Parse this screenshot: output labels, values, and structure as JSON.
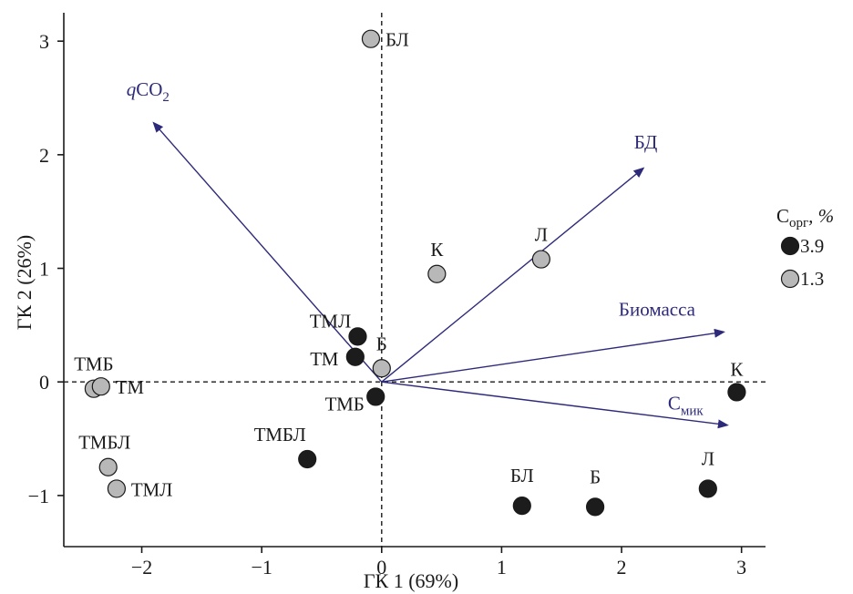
{
  "chart_data": {
    "type": "scatter",
    "title": "",
    "xlabel": "ГК 1 (69%)",
    "ylabel": "ГК 2 (26%)",
    "xlim": [
      -2.65,
      3.2
    ],
    "ylim": [
      -1.45,
      3.25
    ],
    "x_ticks": [
      -2,
      -1,
      0,
      1,
      2,
      3
    ],
    "y_ticks": [
      -1,
      0,
      1,
      2,
      3
    ],
    "x_tick_labels": [
      "−2",
      "−1",
      "0",
      "1",
      "2",
      "3"
    ],
    "y_tick_labels": [
      "−1",
      "0",
      "1",
      "2",
      "3"
    ],
    "reference_lines": {
      "x": 0,
      "y": 0,
      "style": "dashed"
    },
    "legend": {
      "title_main": "С",
      "title_sub": "орг",
      "title_suffix": ", %",
      "placement": "right",
      "entries": [
        {
          "label": "3.9",
          "color": "#1c1c1c"
        },
        {
          "label": "1.3",
          "color": "#b8b8b8"
        }
      ]
    },
    "colors": {
      "dark": "#1c1c1c",
      "light": "#b8b8b8",
      "vector": "#2e2a7a"
    },
    "series": [
      {
        "name": "3.9",
        "color": "#1c1c1c",
        "points": [
          {
            "x": -0.2,
            "y": 0.4,
            "label": "ТМЛ"
          },
          {
            "x": -0.22,
            "y": 0.22,
            "label": "ТМ"
          },
          {
            "x": -0.05,
            "y": -0.13,
            "label": "ТМБ"
          },
          {
            "x": -0.62,
            "y": -0.68,
            "label": "ТМБЛ"
          },
          {
            "x": 1.17,
            "y": -1.09,
            "label": "БЛ"
          },
          {
            "x": 1.78,
            "y": -1.1,
            "label": "Б"
          },
          {
            "x": 2.72,
            "y": -0.94,
            "label": "Л"
          },
          {
            "x": 2.96,
            "y": -0.09,
            "label": "К"
          }
        ]
      },
      {
        "name": "1.3",
        "color": "#b8b8b8",
        "points": [
          {
            "x": -0.09,
            "y": 3.02,
            "label": "БЛ"
          },
          {
            "x": 0.46,
            "y": 0.95,
            "label": "К"
          },
          {
            "x": 1.33,
            "y": 1.08,
            "label": "Л"
          },
          {
            "x": 0.0,
            "y": 0.12,
            "label": "Б"
          },
          {
            "x": -2.4,
            "y": -0.06,
            "label": "ТМБ"
          },
          {
            "x": -2.34,
            "y": -0.04,
            "label": "ТМ"
          },
          {
            "x": -2.28,
            "y": -0.75,
            "label": "ТМБЛ"
          },
          {
            "x": -2.21,
            "y": -0.94,
            "label": "ТМЛ"
          }
        ]
      }
    ],
    "vectors": [
      {
        "label": "qCO",
        "subscript": "2",
        "italic_prefix": "q",
        "x": -1.9,
        "y": 2.28
      },
      {
        "label": "БД",
        "subscript": "",
        "x": 2.18,
        "y": 1.88
      },
      {
        "label": "Биомасса",
        "subscript": "",
        "x": 2.85,
        "y": 0.44
      },
      {
        "label": "С",
        "subscript": "мик",
        "x": 2.88,
        "y": -0.38
      }
    ]
  }
}
